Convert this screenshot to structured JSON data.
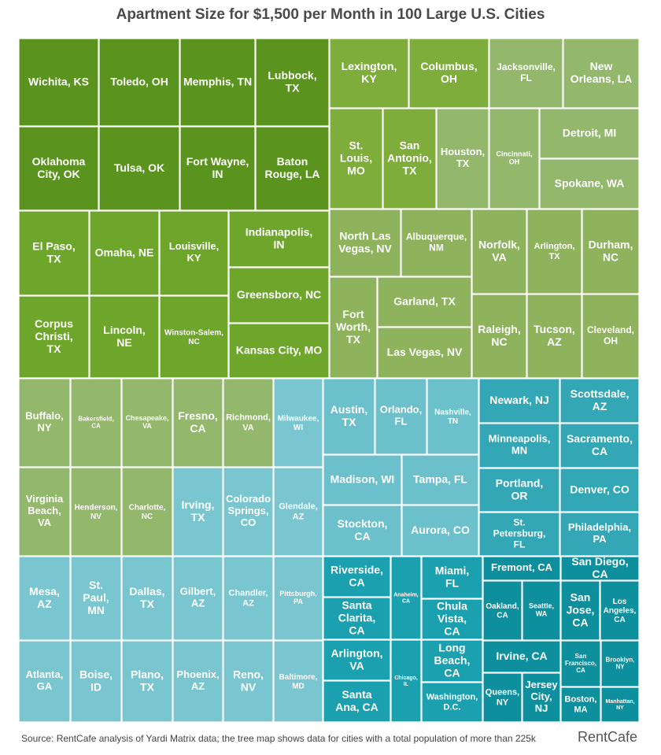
{
  "title": "Apartment Size for $1,500 per Month in 100 Large U.S. Cities",
  "source": "Source: RentCafe analysis of Yardi Matrix data; the tree map shows data for cities with a total population of more than 225k",
  "logo": "RentCafe",
  "colors": [
    "#5b931f",
    "#6ea52b",
    "#7ead3b",
    "#8eb35c",
    "#93b86b",
    "#79c6d1",
    "#6cc0cc",
    "#55b4c3",
    "#33a7b6",
    "#1ba0b0",
    "#0e8f9e"
  ],
  "chart_data": {
    "type": "treemap",
    "cells": [
      {
        "label": "Wichita, KS",
        "color": "#5b931f"
      },
      {
        "label": "Toledo, OH",
        "color": "#5b931f"
      },
      {
        "label": "Memphis, TN",
        "color": "#5b931f"
      },
      {
        "label": "Lubbock, TX",
        "color": "#5b931f"
      },
      {
        "label": "Oklahoma City, OK",
        "color": "#5b931f"
      },
      {
        "label": "Tulsa, OK",
        "color": "#5b931f"
      },
      {
        "label": "Fort Wayne, IN",
        "color": "#5b931f"
      },
      {
        "label": "Baton Rouge, LA",
        "color": "#5b931f"
      },
      {
        "label": "Lexington, KY",
        "color": "#7ead3b"
      },
      {
        "label": "Columbus, OH",
        "color": "#7ead3b"
      },
      {
        "label": "Jacksonville, FL",
        "color": "#93b86b"
      },
      {
        "label": "New Orleans, LA",
        "color": "#93b86b"
      },
      {
        "label": "St. Louis, MO",
        "color": "#7ead3b"
      },
      {
        "label": "San Antonio, TX",
        "color": "#7ead3b"
      },
      {
        "label": "Houston, TX",
        "color": "#93b86b"
      },
      {
        "label": "Cincinnati, OH",
        "color": "#93b86b"
      },
      {
        "label": "Detroit, MI",
        "color": "#93b86b"
      },
      {
        "label": "Spokane, WA",
        "color": "#93b86b"
      },
      {
        "label": "El Paso, TX",
        "color": "#6ea52b"
      },
      {
        "label": "Omaha, NE",
        "color": "#6ea52b"
      },
      {
        "label": "Louisville, KY",
        "color": "#6ea52b"
      },
      {
        "label": "Indianapolis, IN",
        "color": "#6ea52b"
      },
      {
        "label": "Greensboro, NC",
        "color": "#6ea52b"
      },
      {
        "label": "Corpus Christi, TX",
        "color": "#6ea52b"
      },
      {
        "label": "Lincoln, NE",
        "color": "#6ea52b"
      },
      {
        "label": "Winston-Salem, NC",
        "color": "#6ea52b"
      },
      {
        "label": "Kansas City, MO",
        "color": "#6ea52b"
      },
      {
        "label": "North Las Vegas, NV",
        "color": "#8eb35c"
      },
      {
        "label": "Albuquerque, NM",
        "color": "#8eb35c"
      },
      {
        "label": "Fort Worth, TX",
        "color": "#8eb35c"
      },
      {
        "label": "Garland, TX",
        "color": "#8eb35c"
      },
      {
        "label": "Las Vegas, NV",
        "color": "#8eb35c"
      },
      {
        "label": "Norfolk, VA",
        "color": "#8eb35c"
      },
      {
        "label": "Arlington, TX",
        "color": "#8eb35c"
      },
      {
        "label": "Durham, NC",
        "color": "#8eb35c"
      },
      {
        "label": "Raleigh, NC",
        "color": "#8eb35c"
      },
      {
        "label": "Tucson, AZ",
        "color": "#8eb35c"
      },
      {
        "label": "Cleveland, OH",
        "color": "#8eb35c"
      },
      {
        "label": "Buffalo, NY",
        "color": "#93b86b"
      },
      {
        "label": "Bakersfield, CA",
        "color": "#93b86b"
      },
      {
        "label": "Chesapeake, VA",
        "color": "#93b86b"
      },
      {
        "label": "Fresno, CA",
        "color": "#93b86b"
      },
      {
        "label": "Richmond, VA",
        "color": "#93b86b"
      },
      {
        "label": "Virginia Beach, VA",
        "color": "#93b86b"
      },
      {
        "label": "Henderson, NV",
        "color": "#93b86b"
      },
      {
        "label": "Charlotte, NC",
        "color": "#93b86b"
      },
      {
        "label": "Milwaukee, WI",
        "color": "#79c6d1"
      },
      {
        "label": "Irving, TX",
        "color": "#79c6d1"
      },
      {
        "label": "Colorado Springs, CO",
        "color": "#79c6d1"
      },
      {
        "label": "Glendale, AZ",
        "color": "#79c6d1"
      },
      {
        "label": "Austin, TX",
        "color": "#6cc0cc"
      },
      {
        "label": "Orlando, FL",
        "color": "#6cc0cc"
      },
      {
        "label": "Nashville, TN",
        "color": "#6cc0cc"
      },
      {
        "label": "Madison, WI",
        "color": "#6cc0cc"
      },
      {
        "label": "Tampa, FL",
        "color": "#6cc0cc"
      },
      {
        "label": "Stockton, CA",
        "color": "#6cc0cc"
      },
      {
        "label": "Aurora, CO",
        "color": "#6cc0cc"
      },
      {
        "label": "Newark, NJ",
        "color": "#33a7b6"
      },
      {
        "label": "Scottsdale, AZ",
        "color": "#33a7b6"
      },
      {
        "label": "Minneapolis, MN",
        "color": "#33a7b6"
      },
      {
        "label": "Sacramento, CA",
        "color": "#33a7b6"
      },
      {
        "label": "Portland, OR",
        "color": "#33a7b6"
      },
      {
        "label": "Denver, CO",
        "color": "#33a7b6"
      },
      {
        "label": "St. Petersburg, FL",
        "color": "#33a7b6"
      },
      {
        "label": "Philadelphia, PA",
        "color": "#33a7b6"
      },
      {
        "label": "Mesa, AZ",
        "color": "#79c6d1"
      },
      {
        "label": "St. Paul, MN",
        "color": "#79c6d1"
      },
      {
        "label": "Dallas, TX",
        "color": "#79c6d1"
      },
      {
        "label": "Gilbert, AZ",
        "color": "#79c6d1"
      },
      {
        "label": "Chandler, AZ",
        "color": "#79c6d1"
      },
      {
        "label": "Pittsburgh, PA",
        "color": "#79c6d1"
      },
      {
        "label": "Atlanta, GA",
        "color": "#79c6d1"
      },
      {
        "label": "Boise, ID",
        "color": "#79c6d1"
      },
      {
        "label": "Plano, TX",
        "color": "#79c6d1"
      },
      {
        "label": "Phoenix, AZ",
        "color": "#79c6d1"
      },
      {
        "label": "Reno, NV",
        "color": "#79c6d1"
      },
      {
        "label": "Baltimore, MD",
        "color": "#79c6d1"
      },
      {
        "label": "Riverside, CA",
        "color": "#1ba0b0"
      },
      {
        "label": "Anaheim, CA",
        "color": "#1ba0b0"
      },
      {
        "label": "Miami, FL",
        "color": "#1ba0b0"
      },
      {
        "label": "Santa Clarita, CA",
        "color": "#1ba0b0"
      },
      {
        "label": "Chula Vista, CA",
        "color": "#1ba0b0"
      },
      {
        "label": "Arlington, VA",
        "color": "#1ba0b0"
      },
      {
        "label": "Chicago, IL",
        "color": "#1ba0b0"
      },
      {
        "label": "Long Beach, CA",
        "color": "#1ba0b0"
      },
      {
        "label": "Santa Ana, CA",
        "color": "#1ba0b0"
      },
      {
        "label": "Washington, D.C.",
        "color": "#1ba0b0"
      },
      {
        "label": "Fremont, CA",
        "color": "#0e8f9e"
      },
      {
        "label": "San Diego, CA",
        "color": "#0e8f9e"
      },
      {
        "label": "Oakland, CA",
        "color": "#0e8f9e"
      },
      {
        "label": "Seattle, WA",
        "color": "#0e8f9e"
      },
      {
        "label": "San Jose, CA",
        "color": "#0e8f9e"
      },
      {
        "label": "Los Angeles, CA",
        "color": "#0e8f9e"
      },
      {
        "label": "Irvine, CA",
        "color": "#0e8f9e"
      },
      {
        "label": "San Francisco, CA",
        "color": "#0e8f9e"
      },
      {
        "label": "Brooklyn, NY",
        "color": "#0e8f9e"
      },
      {
        "label": "Queens, NY",
        "color": "#0e8f9e"
      },
      {
        "label": "Jersey City, NJ",
        "color": "#0e8f9e"
      },
      {
        "label": "Boston, MA",
        "color": "#0e8f9e"
      },
      {
        "label": "Manhattan, NY",
        "color": "#0e8f9e"
      }
    ]
  }
}
